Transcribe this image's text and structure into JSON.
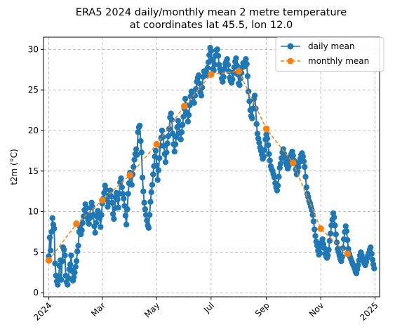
{
  "chart_data": {
    "type": "line",
    "title_line1": "ERA5 2024 daily/monthly mean 2 metre temperature",
    "title_line2": "at coordinates lat 45.5, lon 12.0",
    "xlabel": "",
    "ylabel": "t2m (°C)",
    "xlim": [
      "2023-12-26",
      "2025-01-06"
    ],
    "ylim": [
      -0.5,
      31.5
    ],
    "grid": true,
    "legend_position": "top-right",
    "x_ticks": [
      {
        "date": "2024-01-01",
        "label": "2024"
      },
      {
        "date": "2024-03-01",
        "label": "Mar"
      },
      {
        "date": "2024-05-01",
        "label": "May"
      },
      {
        "date": "2024-07-01",
        "label": "Jul"
      },
      {
        "date": "2024-09-01",
        "label": "Sep"
      },
      {
        "date": "2024-11-01",
        "label": "Nov"
      },
      {
        "date": "2025-01-01",
        "label": "2025"
      }
    ],
    "y_ticks": [
      0,
      5,
      10,
      15,
      20,
      25,
      30
    ],
    "series": [
      {
        "name": "daily mean",
        "color": "#1f77b4",
        "style": "solid",
        "marker": "circle",
        "x_start": "2024-01-01",
        "step_days": 1,
        "values": [
          4.5,
          6.8,
          5.2,
          7.5,
          9.2,
          8.4,
          7.9,
          3.6,
          2.1,
          1.4,
          1.0,
          2.0,
          3.3,
          4.0,
          1.6,
          3.9,
          5.6,
          5.3,
          4.6,
          2.1,
          1.3,
          1.0,
          1.8,
          2.9,
          3.5,
          4.6,
          2.7,
          1.5,
          1.9,
          2.5,
          3.2,
          3.9,
          5.1,
          5.8,
          7.5,
          8.1,
          7.2,
          7.7,
          8.6,
          9.4,
          10.2,
          10.9,
          10.4,
          9.6,
          9.0,
          8.5,
          9.2,
          10.5,
          11.1,
          10.6,
          9.6,
          8.2,
          7.4,
          8.6,
          9.4,
          10.1,
          9.8,
          9.2,
          8.1,
          9.6,
          11.0,
          11.6,
          12.3,
          13.2,
          12.7,
          11.5,
          10.6,
          11.1,
          12.0,
          12.6,
          11.9,
          11.1,
          9.7,
          9.1,
          10.4,
          11.7,
          12.3,
          11.5,
          10.5,
          12.2,
          13.6,
          14.1,
          13.0,
          12.2,
          11.6,
          10.7,
          9.5,
          8.4,
          10.3,
          12.2,
          13.5,
          14.8,
          14.3,
          13.3,
          14.6,
          15.5,
          16.4,
          17.1,
          17.7,
          17.0,
          19.8,
          20.4,
          20.6,
          18.7,
          17.3,
          14.2,
          12.5,
          11.1,
          10.3,
          9.6,
          8.9,
          8.3,
          8.0,
          9.6,
          11.2,
          12.4,
          13.3,
          14.6,
          15.6,
          16.8,
          17.5,
          15.7,
          13.9,
          15.1,
          16.6,
          18.1,
          19.1,
          20.0,
          19.2,
          18.1,
          17.1,
          16.1,
          17.3,
          18.4,
          19.3,
          20.2,
          21.6,
          22.1,
          21.3,
          19.6,
          18.3,
          17.4,
          18.3,
          19.2,
          20.4,
          21.2,
          20.6,
          19.7,
          18.9,
          19.8,
          20.7,
          21.7,
          22.7,
          23.9,
          23.1,
          22.2,
          21.1,
          21.9,
          23.1,
          24.2,
          24.8,
          24.5,
          23.5,
          23.4,
          24.3,
          25.1,
          26.0,
          26.5,
          26.8,
          25.8,
          24.7,
          24.3,
          25.3,
          26.6,
          27.3,
          27.2,
          26.8,
          27.1,
          27.7,
          28.4,
          29.3,
          30.2,
          29.8,
          28.7,
          27.6,
          27.4,
          28.1,
          29.2,
          29.9,
          30.0,
          29.2,
          28.1,
          27.6,
          27.2,
          26.4,
          26.0,
          26.6,
          27.6,
          28.2,
          28.5,
          28.8,
          28.1,
          27.3,
          26.5,
          26.1,
          25.9,
          26.3,
          27.1,
          27.8,
          28.5,
          28.9,
          28.0,
          26.9,
          25.8,
          25.6,
          26.4,
          27.1,
          27.8,
          28.3,
          27.9,
          28.1,
          28.8,
          28.2,
          26.7,
          24.8,
          23.6,
          22.5,
          21.8,
          21.5,
          22.7,
          23.9,
          24.3,
          22.7,
          20.8,
          19.6,
          19.0,
          18.5,
          17.9,
          17.5,
          17.0,
          16.5,
          16.8,
          17.6,
          18.9,
          19.5,
          19.0,
          18.2,
          17.1,
          16.3,
          15.6,
          15.2,
          15.0,
          14.6,
          14.2,
          13.5,
          13.0,
          12.6,
          13.2,
          14.3,
          15.4,
          15.9,
          16.6,
          17.3,
          17.7,
          17.1,
          16.6,
          16.1,
          15.7,
          15.3,
          15.6,
          16.2,
          16.8,
          17.1,
          17.4,
          16.9,
          16.3,
          15.9,
          15.2,
          14.6,
          14.9,
          15.5,
          16.1,
          16.5,
          17.0,
          17.2,
          16.8,
          16.2,
          15.5,
          14.3,
          13.0,
          12.2,
          11.8,
          11.3,
          11.0,
          10.6,
          10.2,
          9.6,
          8.8,
          7.8,
          7.0,
          6.3,
          5.8,
          5.2,
          4.7,
          4.9,
          5.6,
          6.2,
          6.6,
          6.0,
          5.5,
          4.8,
          4.5,
          4.3,
          4.6,
          5.3,
          6.4,
          7.3,
          8.3,
          9.0,
          9.8,
          9.3,
          8.3,
          7.2,
          6.2,
          5.4,
          5.0,
          4.6,
          4.2,
          3.9,
          4.4,
          5.5,
          6.6,
          7.5,
          8.2,
          7.6,
          6.5,
          5.4,
          4.8,
          4.4,
          4.1,
          3.8,
          3.5,
          3.3,
          3.0,
          2.6,
          2.4,
          2.9,
          3.4,
          4.0,
          4.6,
          5.0,
          4.6,
          4.2,
          3.9,
          3.6,
          3.4,
          3.8,
          4.3,
          4.6,
          4.9,
          5.3,
          5.6,
          4.8,
          4.1,
          3.5,
          3.0
        ]
      },
      {
        "name": "monthly mean",
        "color": "#ff7f0e",
        "style": "dashed",
        "marker": "circle",
        "points": [
          {
            "x": "2024-01-01",
            "y": 4.0
          },
          {
            "x": "2024-02-01",
            "y": 8.5
          },
          {
            "x": "2024-03-01",
            "y": 11.4
          },
          {
            "x": "2024-04-01",
            "y": 14.5
          },
          {
            "x": "2024-05-01",
            "y": 18.3
          },
          {
            "x": "2024-06-01",
            "y": 23.0
          },
          {
            "x": "2024-07-01",
            "y": 26.9
          },
          {
            "x": "2024-08-01",
            "y": 27.3
          },
          {
            "x": "2024-09-01",
            "y": 20.2
          },
          {
            "x": "2024-10-01",
            "y": 16.0
          },
          {
            "x": "2024-11-01",
            "y": 7.9
          },
          {
            "x": "2024-12-01",
            "y": 4.8
          }
        ]
      }
    ]
  }
}
